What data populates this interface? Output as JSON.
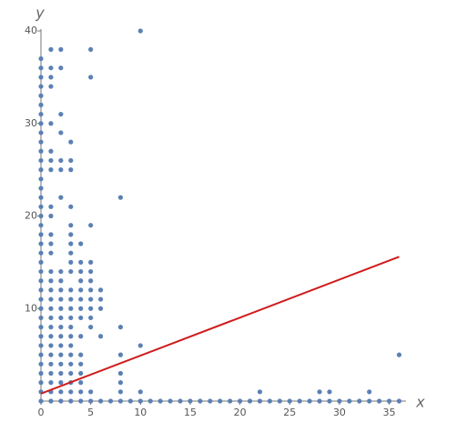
{
  "chart_data": {
    "type": "scatter",
    "x_label": "x",
    "y_label": "y",
    "color": "#5b80b4",
    "x": [
      0,
      0,
      0,
      0,
      0,
      0,
      0,
      0,
      0,
      0,
      0,
      0,
      0,
      0,
      0,
      0,
      0,
      0,
      0,
      0,
      0,
      0,
      0,
      0,
      0,
      0,
      0,
      0,
      0,
      0,
      0,
      0,
      0,
      0,
      0,
      0,
      0,
      0,
      1,
      1,
      1,
      1,
      1,
      1,
      1,
      1,
      1,
      1,
      1,
      1,
      1,
      1,
      1,
      1,
      1,
      1,
      1,
      1,
      1,
      1,
      1,
      1,
      1,
      1,
      1,
      1,
      2,
      2,
      2,
      2,
      2,
      2,
      2,
      2,
      2,
      2,
      2,
      2,
      2,
      2,
      2,
      2,
      2,
      2,
      2,
      2,
      2,
      2,
      3,
      3,
      3,
      3,
      3,
      3,
      3,
      3,
      3,
      3,
      3,
      3,
      3,
      3,
      3,
      3,
      3,
      3,
      3,
      3,
      3,
      3,
      3,
      4,
      4,
      4,
      4,
      4,
      4,
      4,
      4,
      4,
      4,
      4,
      4,
      4,
      4,
      4,
      5,
      5,
      5,
      5,
      5,
      5,
      5,
      5,
      5,
      5,
      5,
      5,
      5,
      6,
      6,
      6,
      6,
      6,
      7,
      8,
      8,
      8,
      8,
      8,
      8,
      8,
      9,
      10,
      10,
      10,
      10,
      11,
      12,
      13,
      14,
      15,
      16,
      17,
      18,
      19,
      20,
      21,
      22,
      23,
      24,
      25,
      26,
      27,
      28,
      29,
      30,
      31,
      32,
      33,
      34,
      35,
      36,
      22,
      28,
      29,
      33,
      36
    ],
    "values": [
      0,
      1,
      2,
      3,
      4,
      5,
      6,
      7,
      8,
      9,
      10,
      11,
      12,
      13,
      14,
      15,
      16,
      17,
      18,
      19,
      20,
      21,
      22,
      23,
      24,
      25,
      26,
      27,
      28,
      29,
      30,
      31,
      32,
      33,
      34,
      35,
      36,
      37,
      38,
      36,
      35,
      34,
      30,
      27,
      26,
      25,
      21,
      20,
      18,
      17,
      16,
      14,
      13,
      12,
      11,
      10,
      9,
      8,
      7,
      6,
      5,
      4,
      3,
      2,
      1,
      0,
      38,
      36,
      31,
      29,
      26,
      25,
      22,
      14,
      13,
      12,
      11,
      10,
      9,
      8,
      7,
      6,
      5,
      4,
      3,
      2,
      1,
      0,
      28,
      26,
      25,
      21,
      19,
      18,
      17,
      16,
      15,
      14,
      12,
      11,
      10,
      9,
      8,
      7,
      6,
      5,
      4,
      3,
      2,
      1,
      0,
      17,
      15,
      14,
      13,
      12,
      11,
      10,
      9,
      7,
      5,
      4,
      3,
      2,
      1,
      0,
      38,
      35,
      19,
      15,
      14,
      13,
      12,
      11,
      10,
      9,
      8,
      1,
      0,
      12,
      11,
      10,
      7,
      0,
      0,
      22,
      8,
      5,
      3,
      2,
      1,
      0,
      0,
      40,
      6,
      1,
      0,
      0,
      0,
      0,
      0,
      0,
      0,
      0,
      0,
      0,
      0,
      0,
      0,
      0,
      0,
      0,
      0,
      0,
      0,
      0,
      0,
      0,
      0,
      0,
      0,
      0,
      0,
      1,
      1,
      1,
      1,
      5
    ],
    "fit": {
      "type": "line",
      "color": "#d01c1c",
      "x": [
        0,
        36
      ],
      "values": [
        0.8,
        15.6
      ]
    },
    "xlim": [
      0,
      36.5
    ],
    "ylim": [
      0,
      40
    ],
    "xticks": [
      0,
      5,
      10,
      15,
      20,
      25,
      30,
      35
    ],
    "yticks": [
      10,
      20,
      30,
      40
    ]
  }
}
